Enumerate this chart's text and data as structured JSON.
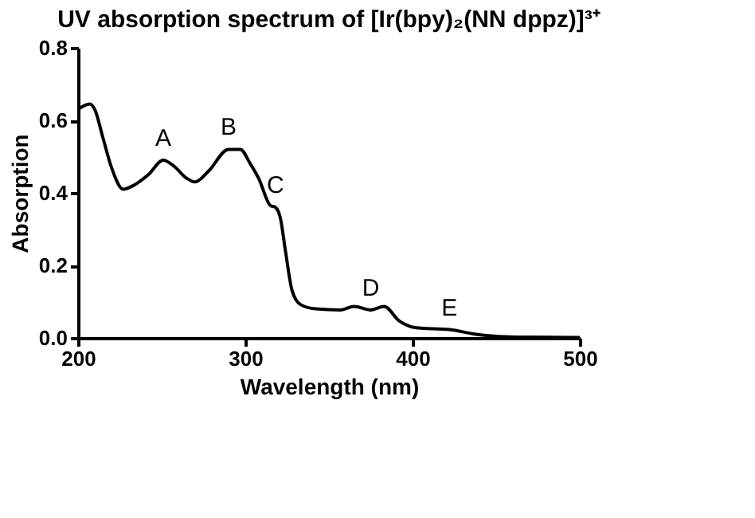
{
  "chart_data": {
    "type": "line",
    "title": "UV absorption spectrum of [Ir(bpy)₂(NN dppz)]³⁺",
    "xlabel": "Wavelength (nm)",
    "ylabel": "Absorption",
    "x": [
      200,
      207,
      210,
      215,
      220,
      227,
      233,
      242,
      251,
      257,
      265,
      270,
      278,
      290,
      297,
      303,
      308,
      315,
      318,
      321,
      324,
      328,
      333,
      342,
      357,
      365,
      375,
      383,
      392,
      402,
      422,
      438,
      452,
      472,
      500
    ],
    "series": [
      {
        "color": "#000000",
        "values": [
          0.63,
          0.645,
          0.63,
          0.55,
          0.47,
          0.41,
          0.42,
          0.45,
          0.49,
          0.475,
          0.44,
          0.43,
          0.46,
          0.52,
          0.52,
          0.48,
          0.44,
          0.365,
          0.36,
          0.33,
          0.24,
          0.13,
          0.092,
          0.08,
          0.077,
          0.087,
          0.077,
          0.087,
          0.047,
          0.028,
          0.023,
          0.01,
          0.004,
          0.002,
          0.001
        ]
      }
    ],
    "annotations": [
      {
        "text": "A",
        "x": 251,
        "y": 0.49
      },
      {
        "text": "B",
        "x": 290,
        "y": 0.52
      },
      {
        "text": "C",
        "x": 318,
        "y": 0.36
      },
      {
        "text": "D",
        "x": 375,
        "y": 0.077
      },
      {
        "text": "E",
        "x": 422,
        "y": 0.023
      }
    ],
    "xlim": [
      200,
      500
    ],
    "xticks": [
      200,
      300,
      400,
      500
    ],
    "ylim": [
      0,
      0.8
    ],
    "yticks": [
      {
        "value": 0,
        "label": "0.0"
      },
      {
        "value": 0.2,
        "label": "0.2"
      },
      {
        "value": 0.4,
        "label": "0.4"
      },
      {
        "value": 0.6,
        "label": "0.6"
      },
      {
        "value": 0.8,
        "label": "0.8"
      }
    ],
    "grid": false,
    "marker": "none",
    "line_style": "solid"
  }
}
